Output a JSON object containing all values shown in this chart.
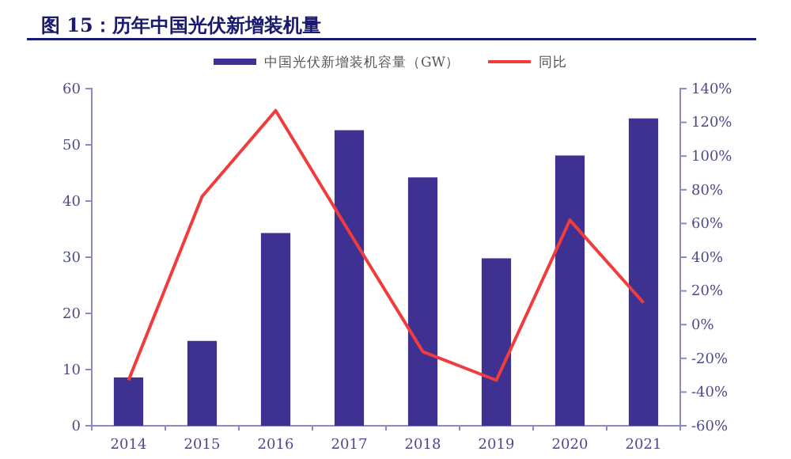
{
  "chart_data": {
    "type": "bar",
    "title": "图 15：历年中国光伏新增装机量",
    "categories": [
      "2014",
      "2015",
      "2016",
      "2017",
      "2018",
      "2019",
      "2020",
      "2021"
    ],
    "series": [
      {
        "name": "中国光伏新增装机容量（GW）",
        "color": "#3f3192",
        "values": [
          8.6,
          15.1,
          34.3,
          52.6,
          44.2,
          29.8,
          48.1,
          54.7
        ]
      },
      {
        "name": "同比",
        "type": "line",
        "axis": "y2",
        "color": "#f03c3c",
        "values": [
          -33,
          76,
          127,
          55,
          -16,
          -33,
          62,
          13
        ]
      }
    ],
    "ylim": [
      0,
      60
    ],
    "yticks": [
      0,
      10,
      20,
      30,
      40,
      50,
      60
    ],
    "y2lim": [
      -60,
      140
    ],
    "y2ticks": [
      {
        "value": -60,
        "label": "-60%"
      },
      {
        "value": -40,
        "label": "-40%"
      },
      {
        "value": -20,
        "label": "-20%"
      },
      {
        "value": 0,
        "label": "0%"
      },
      {
        "value": 20,
        "label": "20%"
      },
      {
        "value": 40,
        "label": "40%"
      },
      {
        "value": 60,
        "label": "60%"
      },
      {
        "value": 80,
        "label": "80%"
      },
      {
        "value": 100,
        "label": "100%"
      },
      {
        "value": 120,
        "label": "120%"
      },
      {
        "value": 140,
        "label": "140%"
      }
    ],
    "legend": "top",
    "grid": false
  }
}
